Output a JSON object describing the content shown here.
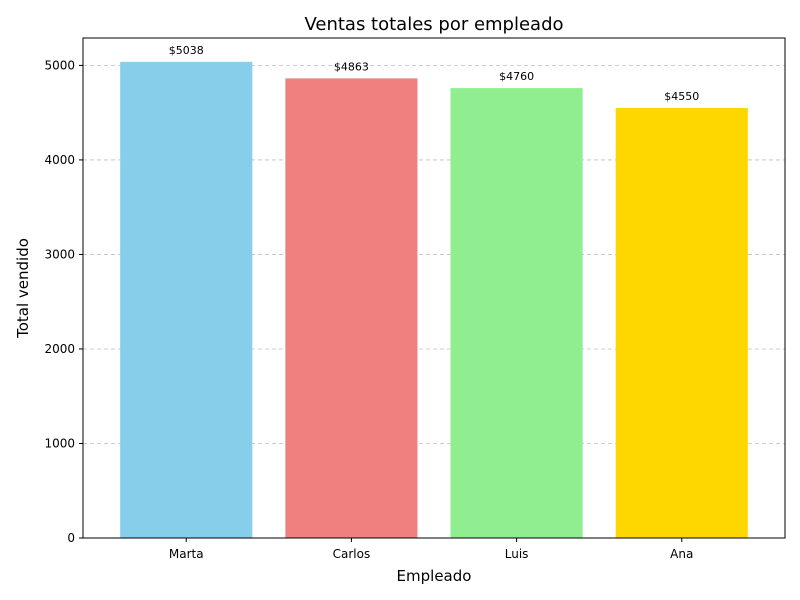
{
  "chart_data": {
    "type": "bar",
    "title": "Ventas totales por empleado",
    "xlabel": "Empleado",
    "ylabel": "Total vendido",
    "categories": [
      "Marta",
      "Carlos",
      "Luis",
      "Ana"
    ],
    "values": [
      5038,
      4863,
      4760,
      4550
    ],
    "data_labels": [
      "$5038",
      "$4863",
      "$4760",
      "$4550"
    ],
    "colors": [
      "#87CEEB",
      "#F08080",
      "#90EE90",
      "#FFD700"
    ],
    "ylim": [
      0,
      5290
    ],
    "yticks": [
      0,
      1000,
      2000,
      3000,
      4000,
      5000
    ],
    "ytick_labels": [
      "0",
      "1000",
      "2000",
      "3000",
      "4000",
      "5000"
    ],
    "grid": "y-dashed"
  }
}
